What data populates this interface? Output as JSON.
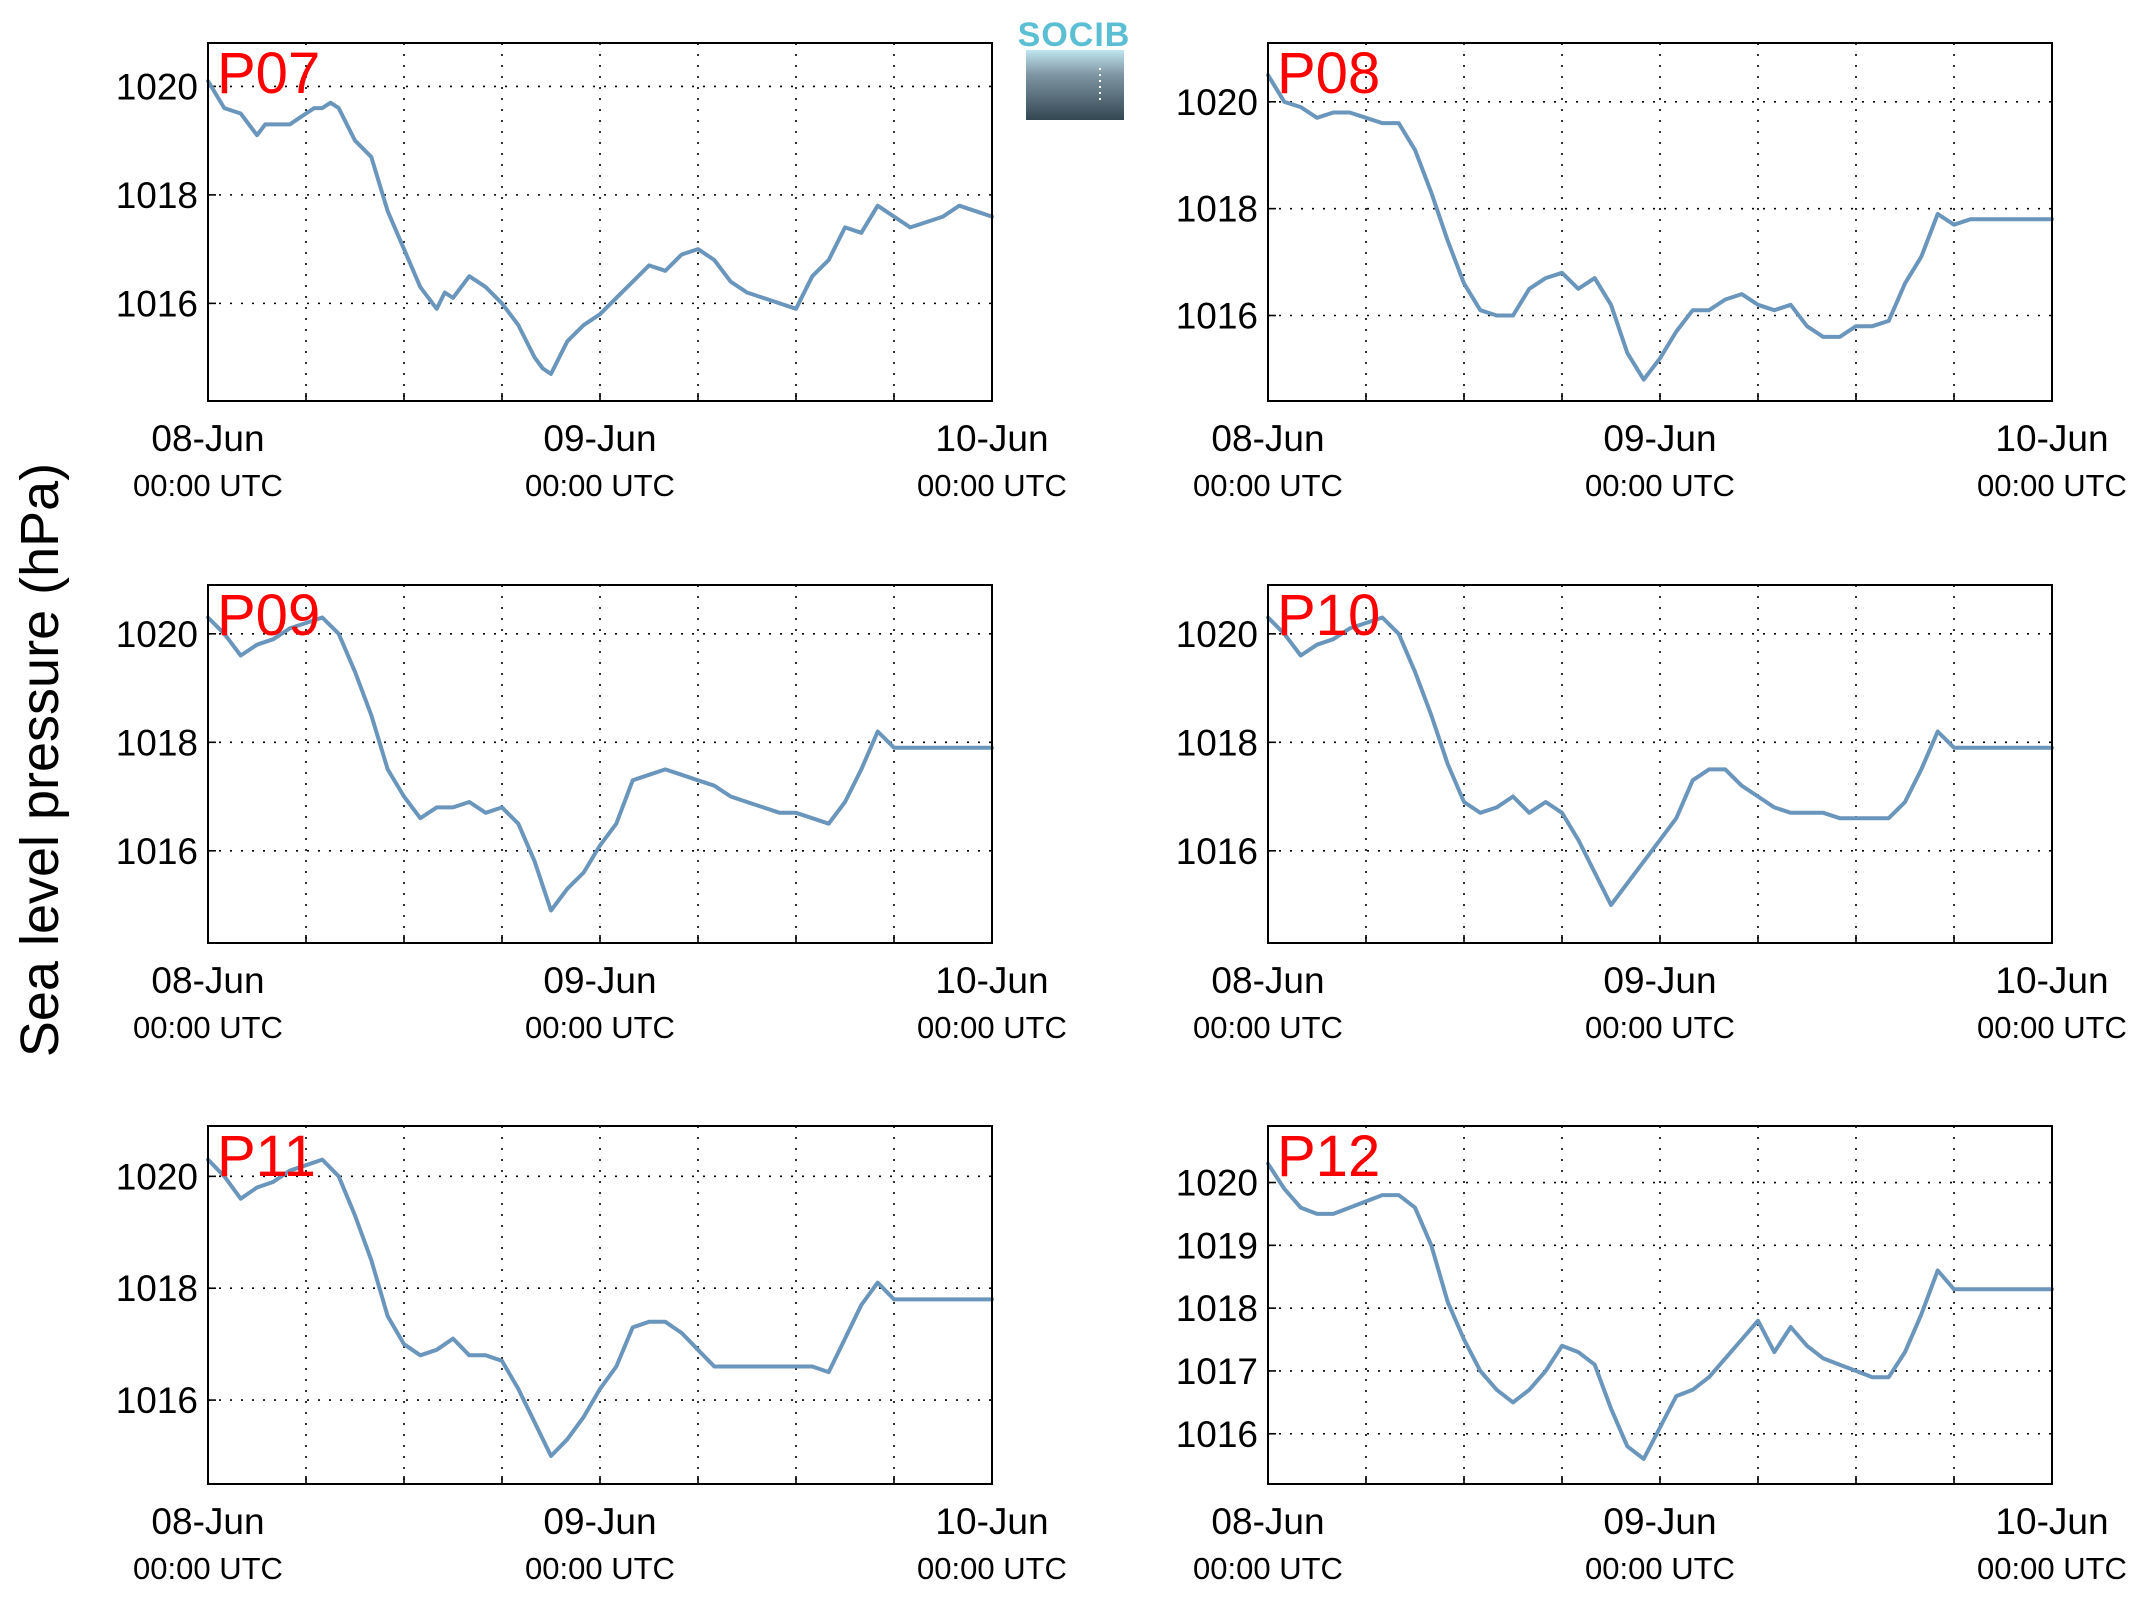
{
  "figure": {
    "ylabel": "Sea level pressure (hPa)",
    "logo_text": "SOCIB",
    "line_color": "#6a96bc",
    "label_color": "#ff0000"
  },
  "chart_data": [
    {
      "type": "line",
      "station": "P07",
      "x_ticks": [
        {
          "line1": "08-Jun",
          "line2": "00:00 UTC"
        },
        {
          "line1": "09-Jun",
          "line2": "00:00 UTC"
        },
        {
          "line1": "10-Jun",
          "line2": "00:00 UTC"
        }
      ],
      "xlim_hours": [
        0,
        48
      ],
      "ylim": [
        1014.2,
        1020.8
      ],
      "yticks": [
        1016,
        1018,
        1020
      ],
      "grid": true,
      "x": [
        0,
        1,
        2,
        3,
        3.5,
        4,
        5,
        6,
        6.5,
        7,
        7.5,
        8,
        9,
        10,
        11,
        12,
        13,
        13.5,
        14,
        14.5,
        15,
        16,
        17,
        18,
        19,
        20,
        20.5,
        21,
        22,
        23,
        24,
        25,
        26,
        27,
        28,
        29,
        30,
        31,
        32,
        33,
        34,
        35,
        36,
        37,
        38,
        39,
        40,
        41,
        42,
        42.5,
        43,
        44,
        45,
        46,
        47,
        48
      ],
      "y": [
        1020.1,
        1019.6,
        1019.5,
        1019.1,
        1019.3,
        1019.3,
        1019.3,
        1019.5,
        1019.6,
        1019.6,
        1019.7,
        1019.6,
        1019.0,
        1018.7,
        1017.7,
        1017.0,
        1016.3,
        1016.1,
        1015.9,
        1016.2,
        1016.1,
        1016.5,
        1016.3,
        1016.0,
        1015.6,
        1015.0,
        1014.8,
        1014.7,
        1015.3,
        1015.6,
        1015.8,
        1016.1,
        1016.4,
        1016.7,
        1016.6,
        1016.9,
        1017.0,
        1016.8,
        1016.4,
        1016.2,
        1016.1,
        1016.0,
        1015.9,
        1016.5,
        1016.8,
        1017.4,
        1017.3,
        1017.8,
        1017.6,
        1017.5,
        1017.4,
        1017.5,
        1017.6,
        1017.8,
        1017.7,
        1017.6
      ]
    },
    {
      "type": "line",
      "station": "P08",
      "x_ticks": [
        {
          "line1": "08-Jun",
          "line2": "00:00 UTC"
        },
        {
          "line1": "09-Jun",
          "line2": "00:00 UTC"
        },
        {
          "line1": "10-Jun",
          "line2": "00:00 UTC"
        }
      ],
      "xlim_hours": [
        0,
        48
      ],
      "ylim": [
        1014.4,
        1021.1
      ],
      "yticks": [
        1016,
        1018,
        1020
      ],
      "grid": true,
      "x": [
        0,
        1,
        2,
        3,
        4,
        5,
        6,
        7,
        8,
        9,
        10,
        11,
        12,
        13,
        14,
        15,
        16,
        17,
        18,
        19,
        20,
        21,
        22,
        23,
        24,
        25,
        26,
        27,
        28,
        29,
        30,
        31,
        32,
        33,
        34,
        35,
        36,
        37,
        38,
        39,
        40,
        41,
        42,
        43,
        44,
        45,
        46,
        47,
        48
      ],
      "y": [
        1020.5,
        1020.0,
        1019.9,
        1019.7,
        1019.8,
        1019.8,
        1019.7,
        1019.6,
        1019.6,
        1019.1,
        1018.3,
        1017.4,
        1016.6,
        1016.1,
        1016.0,
        1016.0,
        1016.5,
        1016.7,
        1016.8,
        1016.5,
        1016.7,
        1016.2,
        1015.3,
        1014.8,
        1015.2,
        1015.7,
        1016.1,
        1016.1,
        1016.3,
        1016.4,
        1016.2,
        1016.1,
        1016.2,
        1015.8,
        1015.6,
        1015.6,
        1015.8,
        1015.8,
        1015.9,
        1016.6,
        1017.1,
        1017.9,
        1017.7,
        1017.8,
        1017.8,
        1017.8,
        1017.8,
        1017.8,
        1017.8
      ]
    },
    {
      "type": "line",
      "station": "P09",
      "x_ticks": [
        {
          "line1": "08-Jun",
          "line2": "00:00 UTC"
        },
        {
          "line1": "09-Jun",
          "line2": "00:00 UTC"
        },
        {
          "line1": "10-Jun",
          "line2": "00:00 UTC"
        }
      ],
      "xlim_hours": [
        0,
        48
      ],
      "ylim": [
        1014.3,
        1020.9
      ],
      "yticks": [
        1016,
        1018,
        1020
      ],
      "grid": true,
      "x": [
        0,
        1,
        2,
        3,
        4,
        5,
        6,
        7,
        8,
        9,
        10,
        11,
        12,
        13,
        14,
        15,
        16,
        17,
        18,
        19,
        20,
        21,
        22,
        23,
        24,
        25,
        26,
        27,
        28,
        29,
        30,
        31,
        32,
        33,
        34,
        35,
        36,
        37,
        38,
        39,
        40,
        41,
        42,
        43,
        44,
        45,
        46,
        47,
        48
      ],
      "y": [
        1020.3,
        1020.0,
        1019.6,
        1019.8,
        1019.9,
        1020.1,
        1020.2,
        1020.3,
        1020.0,
        1019.3,
        1018.5,
        1017.5,
        1017.0,
        1016.6,
        1016.8,
        1016.8,
        1016.9,
        1016.7,
        1016.8,
        1016.5,
        1015.8,
        1014.9,
        1015.3,
        1015.6,
        1016.1,
        1016.5,
        1017.3,
        1017.4,
        1017.5,
        1017.4,
        1017.3,
        1017.2,
        1017.0,
        1016.9,
        1016.8,
        1016.7,
        1016.7,
        1016.6,
        1016.5,
        1016.9,
        1017.5,
        1018.2,
        1017.9,
        1017.9,
        1017.9,
        1017.9,
        1017.9,
        1017.9,
        1017.9
      ]
    },
    {
      "type": "line",
      "station": "P10",
      "x_ticks": [
        {
          "line1": "08-Jun",
          "line2": "00:00 UTC"
        },
        {
          "line1": "09-Jun",
          "line2": "00:00 UTC"
        },
        {
          "line1": "10-Jun",
          "line2": "00:00 UTC"
        }
      ],
      "xlim_hours": [
        0,
        48
      ],
      "ylim": [
        1014.3,
        1020.9
      ],
      "yticks": [
        1016,
        1018,
        1020
      ],
      "grid": true,
      "x": [
        0,
        1,
        2,
        3,
        4,
        5,
        6,
        7,
        8,
        9,
        10,
        11,
        12,
        13,
        14,
        15,
        16,
        17,
        18,
        19,
        20,
        21,
        22,
        23,
        24,
        25,
        26,
        27,
        28,
        29,
        30,
        31,
        32,
        33,
        34,
        35,
        36,
        37,
        38,
        39,
        40,
        41,
        42,
        43,
        44,
        45,
        46,
        47,
        48
      ],
      "y": [
        1020.3,
        1020.0,
        1019.6,
        1019.8,
        1019.9,
        1020.1,
        1020.2,
        1020.3,
        1020.0,
        1019.3,
        1018.5,
        1017.6,
        1016.9,
        1016.7,
        1016.8,
        1017.0,
        1016.7,
        1016.9,
        1016.7,
        1016.2,
        1015.6,
        1015.0,
        1015.4,
        1015.8,
        1016.2,
        1016.6,
        1017.3,
        1017.5,
        1017.5,
        1017.2,
        1017.0,
        1016.8,
        1016.7,
        1016.7,
        1016.7,
        1016.6,
        1016.6,
        1016.6,
        1016.6,
        1016.9,
        1017.5,
        1018.2,
        1017.9,
        1017.9,
        1017.9,
        1017.9,
        1017.9,
        1017.9,
        1017.9
      ]
    },
    {
      "type": "line",
      "station": "P11",
      "x_ticks": [
        {
          "line1": "08-Jun",
          "line2": "00:00 UTC"
        },
        {
          "line1": "09-Jun",
          "line2": "00:00 UTC"
        },
        {
          "line1": "10-Jun",
          "line2": "00:00 UTC"
        }
      ],
      "xlim_hours": [
        0,
        48
      ],
      "ylim": [
        1014.5,
        1020.9
      ],
      "yticks": [
        1016,
        1018,
        1020
      ],
      "grid": true,
      "x": [
        0,
        1,
        2,
        3,
        4,
        5,
        6,
        7,
        8,
        9,
        10,
        11,
        12,
        13,
        14,
        15,
        16,
        17,
        18,
        19,
        20,
        21,
        22,
        23,
        24,
        25,
        26,
        27,
        28,
        29,
        30,
        31,
        32,
        33,
        34,
        35,
        36,
        37,
        38,
        39,
        40,
        41,
        42,
        43,
        44,
        45,
        46,
        47,
        48
      ],
      "y": [
        1020.3,
        1020.0,
        1019.6,
        1019.8,
        1019.9,
        1020.1,
        1020.2,
        1020.3,
        1020.0,
        1019.3,
        1018.5,
        1017.5,
        1017.0,
        1016.8,
        1016.9,
        1017.1,
        1016.8,
        1016.8,
        1016.7,
        1016.2,
        1015.6,
        1015.0,
        1015.3,
        1015.7,
        1016.2,
        1016.6,
        1017.3,
        1017.4,
        1017.4,
        1017.2,
        1016.9,
        1016.6,
        1016.6,
        1016.6,
        1016.6,
        1016.6,
        1016.6,
        1016.6,
        1016.5,
        1017.1,
        1017.7,
        1018.1,
        1017.8,
        1017.8,
        1017.8,
        1017.8,
        1017.8,
        1017.8,
        1017.8
      ]
    },
    {
      "type": "line",
      "station": "P12",
      "x_ticks": [
        {
          "line1": "08-Jun",
          "line2": "00:00 UTC"
        },
        {
          "line1": "09-Jun",
          "line2": "00:00 UTC"
        },
        {
          "line1": "10-Jun",
          "line2": "00:00 UTC"
        }
      ],
      "xlim_hours": [
        0,
        48
      ],
      "ylim": [
        1015.2,
        1020.9
      ],
      "yticks": [
        1016,
        1017,
        1018,
        1019,
        1020
      ],
      "grid": true,
      "x": [
        0,
        1,
        2,
        3,
        4,
        5,
        6,
        7,
        8,
        9,
        10,
        11,
        12,
        13,
        14,
        15,
        16,
        17,
        18,
        19,
        20,
        21,
        22,
        23,
        24,
        25,
        26,
        27,
        28,
        29,
        30,
        31,
        32,
        33,
        34,
        35,
        36,
        37,
        38,
        39,
        40,
        41,
        42,
        43,
        44,
        45,
        46,
        47,
        48
      ],
      "y": [
        1020.3,
        1019.9,
        1019.6,
        1019.5,
        1019.5,
        1019.6,
        1019.7,
        1019.8,
        1019.8,
        1019.6,
        1019.0,
        1018.1,
        1017.5,
        1017.0,
        1016.7,
        1016.5,
        1016.7,
        1017.0,
        1017.4,
        1017.3,
        1017.1,
        1016.4,
        1015.8,
        1015.6,
        1016.1,
        1016.6,
        1016.7,
        1016.9,
        1017.2,
        1017.5,
        1017.8,
        1017.3,
        1017.7,
        1017.4,
        1017.2,
        1017.1,
        1017.0,
        1016.9,
        1016.9,
        1017.3,
        1017.9,
        1018.6,
        1018.3,
        1018.3,
        1018.3,
        1018.3,
        1018.3,
        1018.3,
        1018.3
      ]
    }
  ]
}
